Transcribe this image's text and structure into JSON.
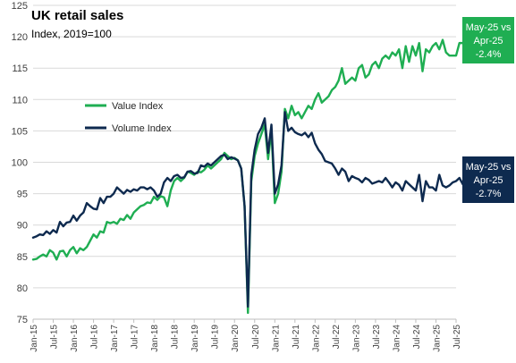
{
  "chart_data": {
    "type": "line",
    "title": "UK retail sales",
    "subtitle": "Index, 2019=100",
    "ylim": [
      75,
      125
    ],
    "y_ticks": [
      75,
      80,
      85,
      90,
      95,
      100,
      105,
      110,
      115,
      120,
      125
    ],
    "grid": true,
    "legend_position": "top-left",
    "x_start": "Jan-15",
    "x_tick_labels": [
      "Jan-15",
      "Jul-15",
      "Jan-16",
      "Jul-16",
      "Jan-17",
      "Jul-17",
      "Jan-18",
      "Jul-18",
      "Jan-19",
      "Jul-19",
      "Jan-20",
      "Jul-20",
      "Jan-21",
      "Jul-21",
      "Jan-22",
      "Jul-22",
      "Jan-23",
      "Jul-23",
      "Jan-24",
      "Jul-24",
      "Jan-25",
      "Jul-25"
    ],
    "series": [
      {
        "name": "Value Index",
        "color": "#1fae52",
        "values": [
          84.5,
          84.6,
          85.0,
          85.3,
          85.0,
          86.0,
          85.6,
          84.5,
          85.8,
          85.9,
          85.0,
          86.0,
          86.5,
          85.5,
          86.3,
          86.0,
          86.5,
          87.5,
          88.5,
          88.0,
          89.0,
          88.8,
          90.5,
          90.3,
          90.5,
          90.2,
          91.0,
          90.8,
          91.6,
          91.0,
          92.0,
          92.5,
          93.0,
          93.2,
          93.6,
          93.5,
          94.5,
          94.0,
          94.6,
          94.4,
          93.0,
          95.5,
          97.0,
          97.5,
          97.0,
          97.5,
          98.5,
          98.3,
          98.0,
          98.5,
          98.4,
          98.8,
          99.5,
          99.0,
          99.5,
          100.0,
          100.5,
          101.5,
          101.0,
          100.5,
          100.7,
          100.3,
          99.0,
          93.0,
          76.0,
          97.0,
          101.0,
          103.0,
          104.5,
          106.0,
          100.5,
          105.0,
          93.5,
          95.0,
          98.5,
          108.5,
          107.0,
          109.0,
          107.5,
          108.0,
          107.0,
          108.0,
          109.0,
          108.5,
          110.0,
          111.0,
          109.5,
          110.0,
          110.5,
          111.5,
          112.0,
          113.0,
          115.0,
          112.5,
          113.0,
          113.5,
          113.0,
          115.0,
          115.5,
          113.5,
          114.0,
          115.5,
          116.0,
          115.0,
          116.5,
          117.0,
          116.5,
          117.5,
          117.0,
          118.0,
          115.0,
          118.5,
          116.0,
          118.5,
          117.0,
          119.0,
          114.5,
          118.0,
          117.5,
          118.5,
          119.0,
          118.0,
          119.5,
          117.5,
          117.0,
          117.0,
          117.0,
          119.0,
          119.0,
          118.5,
          120.2,
          117.3
        ]
      },
      {
        "name": "Volume Index",
        "color": "#0e2a4f",
        "values": [
          88.0,
          88.2,
          88.5,
          88.4,
          89.0,
          88.6,
          89.2,
          88.8,
          90.5,
          89.8,
          90.4,
          90.5,
          91.5,
          90.7,
          91.5,
          92.0,
          93.5,
          93.0,
          92.6,
          92.5,
          94.3,
          93.5,
          94.5,
          94.5,
          95.0,
          96.0,
          95.5,
          95.0,
          95.6,
          95.3,
          95.7,
          95.5,
          96.0,
          96.0,
          95.7,
          96.0,
          95.5,
          94.5,
          95.0,
          96.8,
          97.5,
          97.0,
          97.8,
          98.0,
          97.5,
          97.6,
          98.5,
          98.6,
          98.2,
          98.3,
          99.5,
          99.3,
          99.8,
          99.5,
          100.0,
          100.5,
          101.0,
          101.2,
          100.5,
          100.8,
          100.6,
          100.3,
          99.0,
          93.0,
          77.0,
          98.0,
          102.0,
          104.5,
          105.5,
          107.0,
          101.5,
          106.0,
          95.0,
          96.5,
          99.5,
          108.0,
          105.0,
          105.5,
          104.8,
          104.5,
          104.3,
          104.7,
          104.0,
          104.7,
          103.0,
          102.0,
          101.3,
          100.2,
          100.0,
          99.8,
          99.0,
          98.0,
          99.0,
          98.5,
          97.0,
          97.8,
          97.5,
          97.3,
          96.8,
          97.5,
          97.2,
          96.6,
          96.8,
          97.0,
          96.8,
          97.5,
          96.8,
          96.0,
          96.8,
          96.4,
          95.5,
          97.0,
          96.5,
          96.0,
          95.5,
          98.0,
          93.8,
          97.0,
          96.0,
          96.0,
          95.5,
          98.0,
          96.3,
          96.0,
          96.3,
          96.8,
          97.0,
          97.5,
          96.5,
          96.0,
          96.5,
          97.5,
          98.0,
          97.5,
          99.0,
          96.4
        ]
      }
    ],
    "annotations": [
      {
        "lines": [
          "May-25 vs",
          "Apr-25",
          "-2.4%"
        ],
        "bg": "#1fae52",
        "series": "Value Index"
      },
      {
        "lines": [
          "May-25 vs",
          "Apr-25",
          "-2.7%"
        ],
        "bg": "#0e2a4f",
        "series": "Volume Index"
      }
    ]
  }
}
